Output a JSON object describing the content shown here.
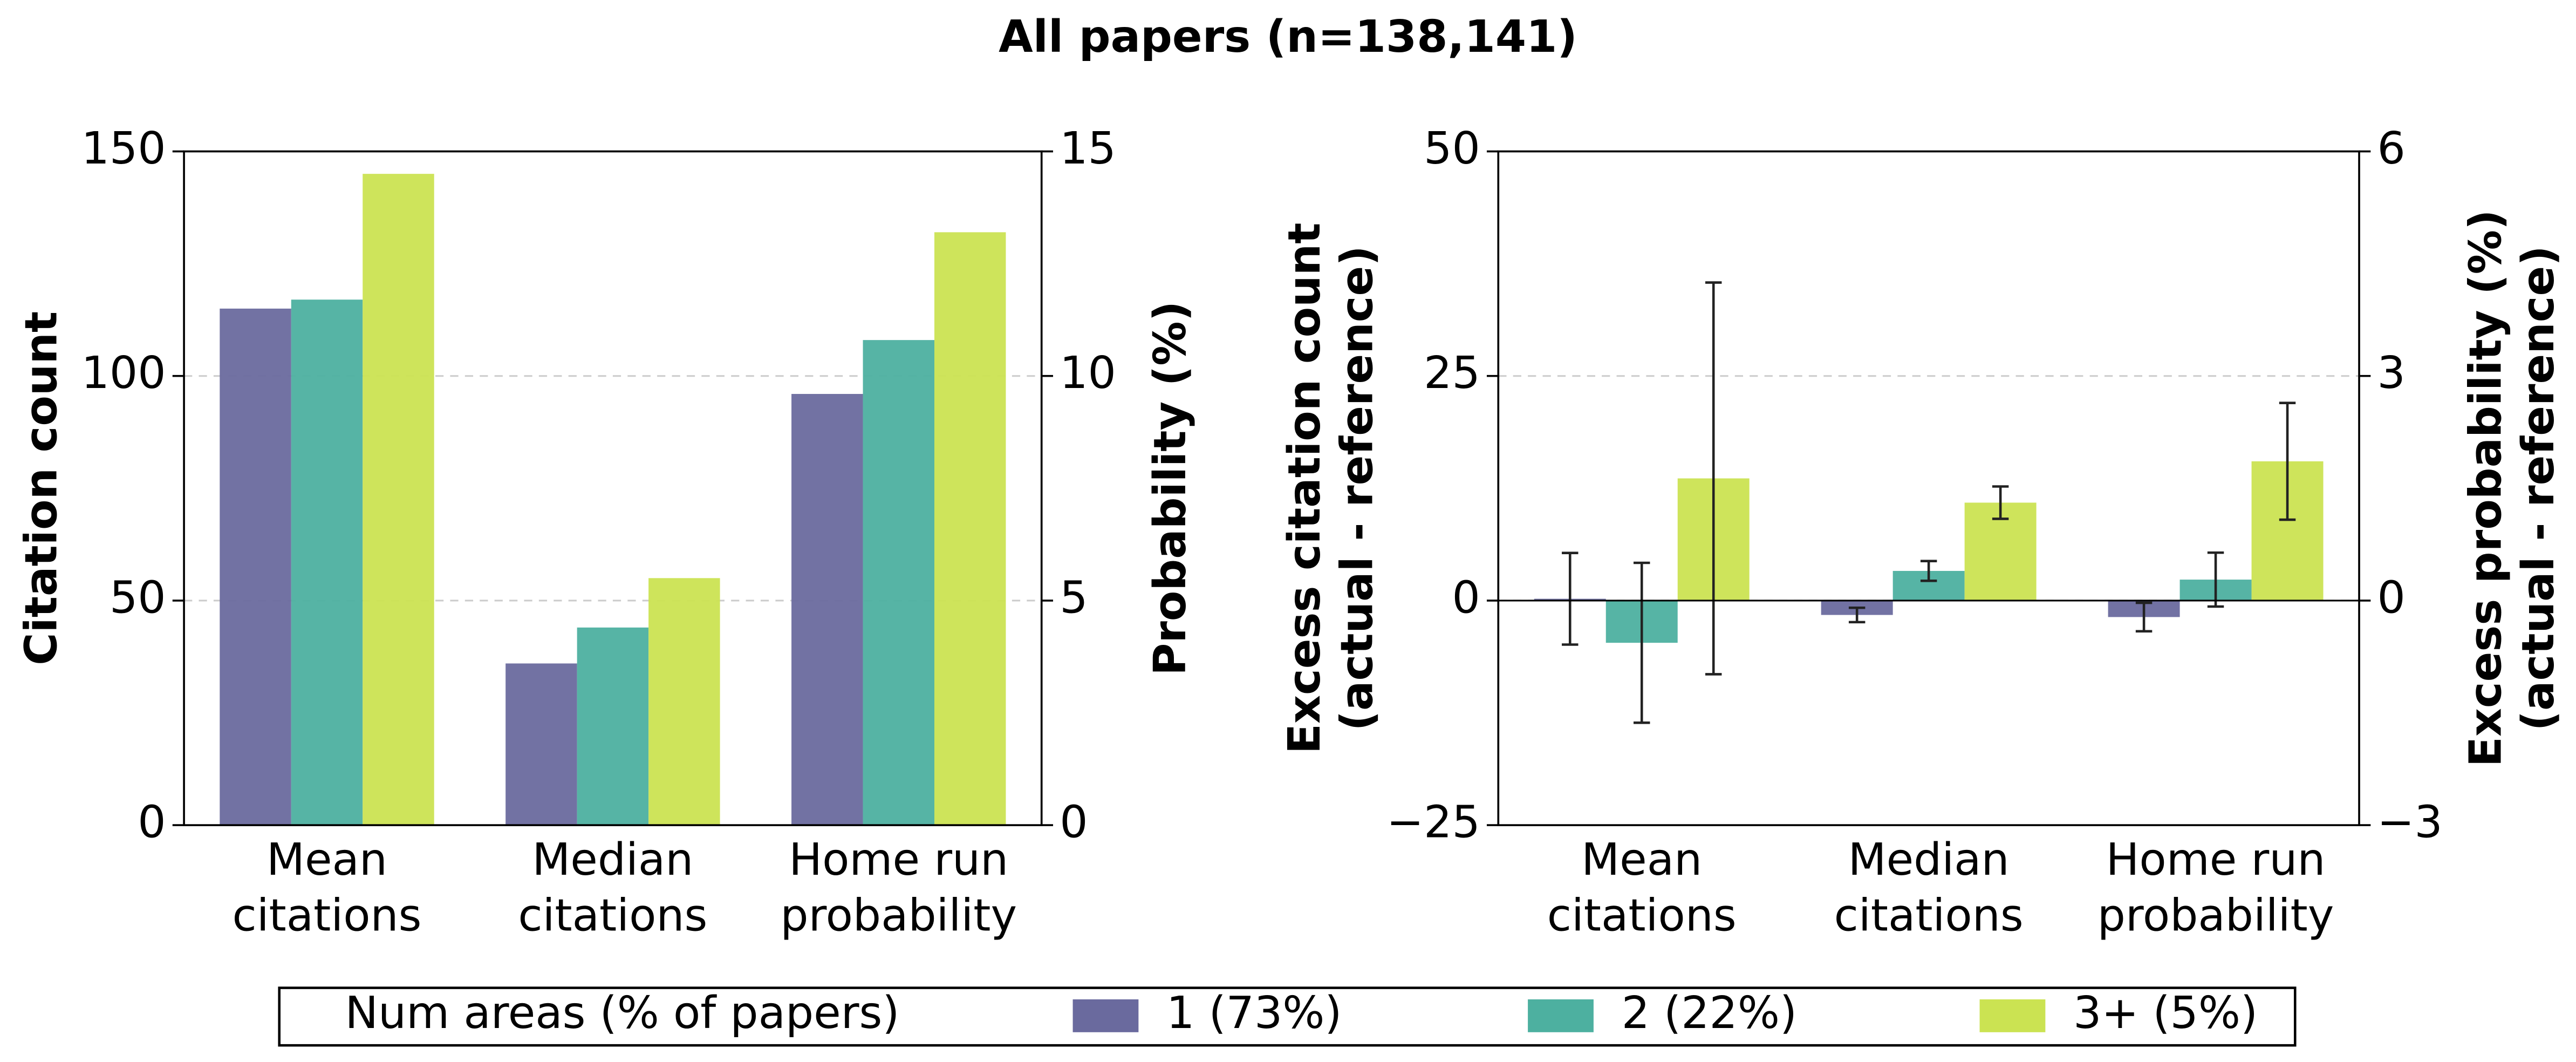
{
  "title": "All papers (n=138,141)",
  "chart_data": [
    {
      "type": "bar",
      "categories": [
        "Mean\ncitations",
        "Median\ncitations",
        "Home run\nprobability"
      ],
      "category_axis": [
        "y",
        "y",
        "y2"
      ],
      "ylabel": "Citation count",
      "y2label": "Probability (%)",
      "ylim": [
        0,
        150
      ],
      "yticks": [
        0,
        50,
        100,
        150
      ],
      "y2lim": [
        0,
        15
      ],
      "y2ticks": [
        0,
        5,
        10,
        15
      ],
      "grid": true,
      "legend_title": "Num areas (% of papers)",
      "series": [
        {
          "name": "1 (73%)",
          "color": "#6a6a9e",
          "values": [
            115,
            36,
            9.6
          ]
        },
        {
          "name": "2 (22%)",
          "color": "#4db0a0",
          "values": [
            117,
            44,
            10.8
          ]
        },
        {
          "name": "3+ (5%)",
          "color": "#cbe352",
          "values": [
            145,
            55,
            13.2
          ]
        }
      ]
    },
    {
      "type": "bar",
      "categories": [
        "Mean\ncitations",
        "Median\ncitations",
        "Home run\nprobability"
      ],
      "category_axis": [
        "y",
        "y",
        "y2"
      ],
      "ylabel": "Excess citation count\n(actual - reference)",
      "y2label": "Excess probability (%)\n(actual - reference)",
      "ylim": [
        -25,
        50
      ],
      "yticks": [
        {
          "value": -25,
          "label": "−25"
        },
        0,
        25,
        50
      ],
      "y2lim": [
        -3,
        6
      ],
      "y2ticks": [
        {
          "value": -3,
          "label": "−3"
        },
        0,
        3,
        6
      ],
      "grid": true,
      "series": [
        {
          "color": "#6a6a9e",
          "values": [
            0.2,
            -1.6,
            -0.22
          ],
          "errors": [
            5.1,
            0.8,
            0.19
          ]
        },
        {
          "color": "#4db0a0",
          "values": [
            -4.7,
            3.3,
            0.28
          ],
          "errors": [
            8.9,
            1.1,
            0.36
          ]
        },
        {
          "color": "#cbe352",
          "values": [
            13.6,
            10.9,
            1.86
          ],
          "errors": [
            21.8,
            1.8,
            0.78
          ]
        }
      ]
    }
  ]
}
